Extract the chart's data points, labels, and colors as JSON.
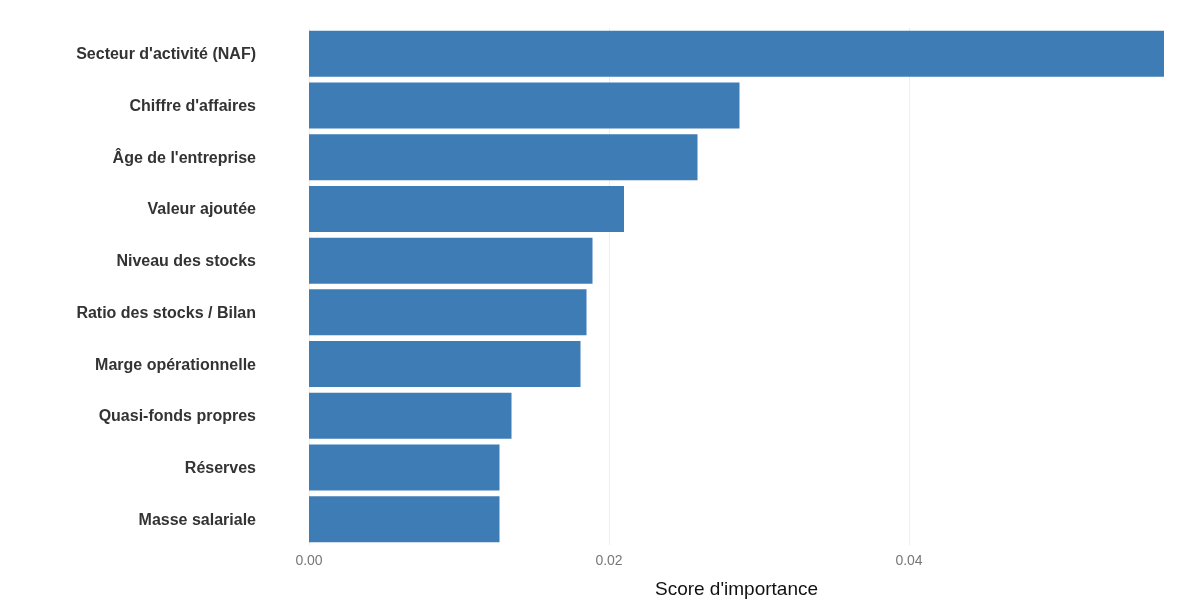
{
  "chart_data": {
    "type": "bar",
    "orientation": "horizontal",
    "xlabel": "Score d'importance",
    "categories": [
      "Secteur d'activité (NAF)",
      "Chiffre d'affaires",
      "Âge de l'entreprise",
      "Valeur ajoutée",
      "Niveau des stocks",
      "Ratio des stocks / Bilan",
      "Marge opérationnelle",
      "Quasi-fonds propres",
      "Réserves",
      "Masse salariale"
    ],
    "values": [
      0.057,
      0.0287,
      0.0259,
      0.021,
      0.0189,
      0.0185,
      0.0181,
      0.0135,
      0.0127,
      0.0127
    ],
    "color": "#3e7cb6",
    "xlim": [
      0,
      0.057
    ],
    "xticks": [
      {
        "value": 0,
        "label": "0.00"
      },
      {
        "value": 0.02,
        "label": "0.02"
      },
      {
        "value": 0.04,
        "label": "0.04"
      }
    ],
    "grid": "x"
  }
}
